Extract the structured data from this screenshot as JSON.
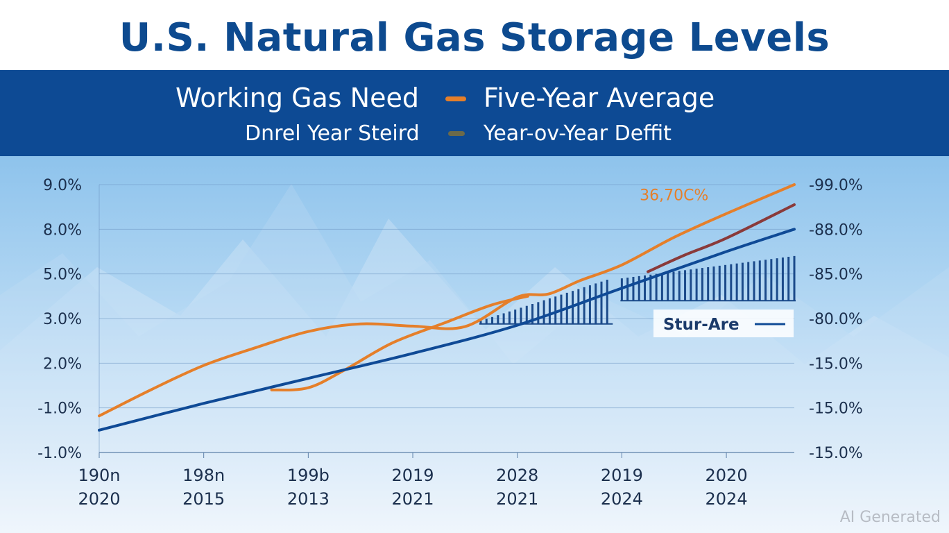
{
  "chart_data": {
    "type": "line",
    "title": "U.S. Natural Gas Storage Levels",
    "legend": [
      {
        "label": "Working Gas Need",
        "color": "",
        "row": 1,
        "side": "left"
      },
      {
        "label": "Five-Year Average",
        "color": "#e57f2a",
        "row": 1,
        "side": "right"
      },
      {
        "label": "Dnrel Year Steird",
        "color": "",
        "row": 2,
        "side": "left"
      },
      {
        "label": "Year-ov-Year Deffit",
        "color": "#6b6a4a",
        "row": 2,
        "side": "right"
      }
    ],
    "y_left_ticks": [
      "9.0%",
      "8.0%",
      "5.0%",
      "3.0%",
      "2.0%",
      "-1.0%",
      "-1.0%"
    ],
    "y_right_ticks": [
      "-99.0%",
      "-88.0%",
      "-85.0%",
      "-80.0%",
      "-15.0%",
      "-15.0%",
      "-15.0%"
    ],
    "x_ticks": [
      [
        "190n",
        "2020"
      ],
      [
        "198n",
        "2015"
      ],
      [
        "199b",
        "2013"
      ],
      [
        "2019",
        "2021"
      ],
      [
        "2028",
        "2021"
      ],
      [
        "2019",
        "2024"
      ],
      [
        "2020",
        "2024"
      ]
    ],
    "xlim": [
      0,
      6.65
    ],
    "ylim": [
      0,
      6
    ],
    "grid": true,
    "series": [
      {
        "name": "Five-Year Average",
        "color": "#e57f2a",
        "x": [
          0,
          0.5,
          1,
          1.5,
          2,
          2.5,
          3,
          3.5,
          4,
          4.3,
          4.6,
          5,
          5.5,
          6,
          6.65
        ],
        "y": [
          0.82,
          1.41,
          1.95,
          2.35,
          2.71,
          2.88,
          2.83,
          2.82,
          3.48,
          3.55,
          3.85,
          4.2,
          4.82,
          5.35,
          6.0
        ]
      },
      {
        "name": "",
        "color": "#e57f2a",
        "x": [
          1.65,
          2.0,
          2.35,
          2.8,
          3.3,
          3.75,
          4.1
        ],
        "y": [
          1.4,
          1.45,
          1.85,
          2.45,
          2.9,
          3.3,
          3.5
        ]
      },
      {
        "name": "",
        "color": "#0f4a96",
        "x": [
          0,
          1,
          2,
          3,
          4,
          5,
          6,
          6.65
        ],
        "y": [
          0.5,
          1.1,
          1.66,
          2.22,
          2.85,
          3.68,
          4.5,
          5.0
        ]
      },
      {
        "name": "",
        "color": "#8a3a3a",
        "x": [
          5.25,
          5.6,
          6.0,
          6.65
        ],
        "y": [
          4.05,
          4.42,
          4.8,
          5.55
        ]
      }
    ],
    "annotations": [
      {
        "text": "36,70C%",
        "x": 5.5,
        "y": 5.65,
        "color": "#e57f2a"
      }
    ],
    "hatch_regions": [
      {
        "x0": 3.65,
        "x1": 4.9,
        "y_top_start": 2.95,
        "y_top_end": 3.9,
        "y_bottom": 2.88
      },
      {
        "x0": 5.0,
        "x1": 6.65,
        "y_top_start": 3.9,
        "y_top_end": 4.4,
        "y_bottom": 3.4
      }
    ],
    "inline_legend": {
      "label": "Stur-Are",
      "color": "#0f4a96"
    }
  },
  "watermark": "AI Generated"
}
